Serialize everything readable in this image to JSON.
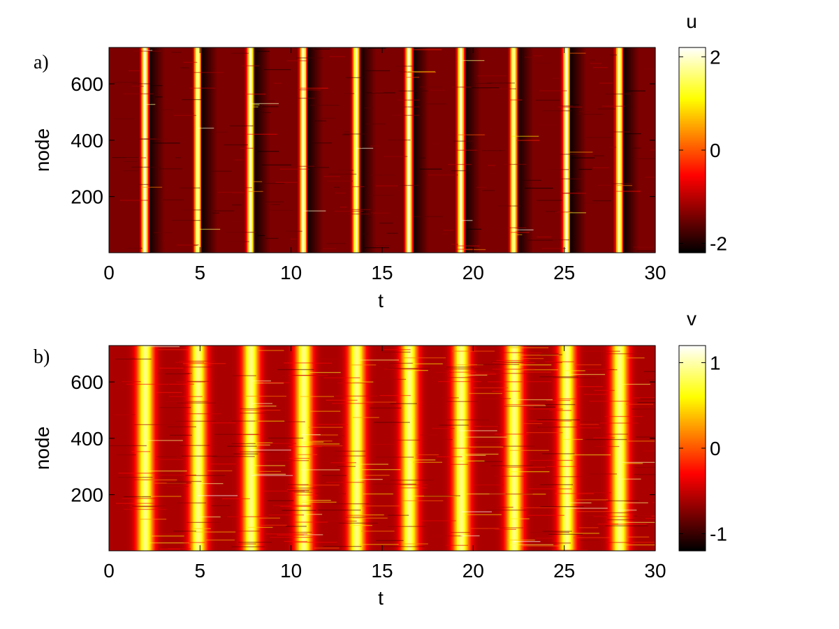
{
  "chart_data": [
    {
      "type": "heatmap",
      "panel_label": "a)",
      "variable": "u",
      "xlabel": "t",
      "ylabel": "node",
      "xlim": [
        0,
        30
      ],
      "ylim": [
        1,
        729
      ],
      "xticks": [
        "0",
        "5",
        "10",
        "15",
        "20",
        "25",
        "30"
      ],
      "yticks": [
        "200",
        "400",
        "600"
      ],
      "colorbar": {
        "label": "u",
        "range": [
          -2.2,
          2.2
        ],
        "ticks": [
          "2",
          "0",
          "-2"
        ],
        "colormap": "hot"
      },
      "period": 2.88,
      "spike_times": [
        1.85,
        4.75,
        7.65,
        10.55,
        13.45,
        16.35,
        19.2,
        22.1,
        25.0,
        27.9
      ],
      "baseline_value": -1.4,
      "peak_value": 2.0
    },
    {
      "type": "heatmap",
      "panel_label": "b)",
      "variable": "v",
      "xlabel": "t",
      "ylabel": "node",
      "xlim": [
        0,
        30
      ],
      "ylim": [
        1,
        729
      ],
      "xticks": [
        "0",
        "5",
        "10",
        "15",
        "20",
        "25",
        "30"
      ],
      "yticks": [
        "200",
        "400",
        "600"
      ],
      "colorbar": {
        "label": "v",
        "range": [
          -1.2,
          1.2
        ],
        "ticks": [
          "1",
          "0",
          "-1"
        ],
        "colormap": "hot"
      },
      "period": 2.88,
      "spike_times": [
        1.85,
        4.75,
        7.65,
        10.55,
        13.45,
        16.35,
        19.2,
        22.1,
        25.0,
        27.9
      ],
      "baseline_value": -0.6,
      "peak_value": 0.9
    }
  ],
  "colors": {
    "background": "#ffffff",
    "axis": "#000000"
  }
}
